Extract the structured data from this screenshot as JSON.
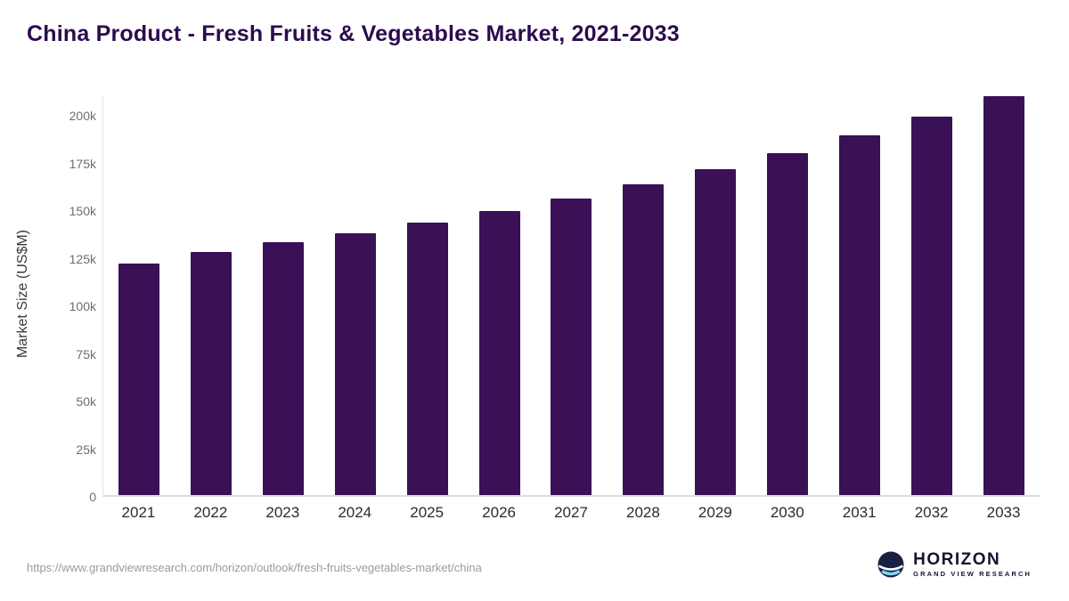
{
  "title": "China Product - Fresh Fruits & Vegetables Market, 2021-2033",
  "chart_data": {
    "type": "bar",
    "title": "China Product - Fresh Fruits & Vegetables Market, 2021-2033",
    "categories": [
      "2021",
      "2022",
      "2023",
      "2024",
      "2025",
      "2026",
      "2027",
      "2028",
      "2029",
      "2030",
      "2031",
      "2032",
      "2033"
    ],
    "values": [
      121500,
      127500,
      132500,
      137500,
      143000,
      149000,
      155500,
      163000,
      171000,
      179500,
      189000,
      198500,
      209500
    ],
    "xlabel": "",
    "ylabel": "Market Size (US$M)",
    "yticks": [
      {
        "value": 0,
        "label": "0"
      },
      {
        "value": 25000,
        "label": "25k"
      },
      {
        "value": 50000,
        "label": "50k"
      },
      {
        "value": 75000,
        "label": "75k"
      },
      {
        "value": 100000,
        "label": "100k"
      },
      {
        "value": 125000,
        "label": "125k"
      },
      {
        "value": 150000,
        "label": "150k"
      },
      {
        "value": 175000,
        "label": "175k"
      },
      {
        "value": 200000,
        "label": "200k"
      }
    ],
    "ylim": [
      0,
      210000
    ],
    "grid": false,
    "legend": "none",
    "bar_color": "#3a1056"
  },
  "footer": {
    "source_url": "https://www.grandviewresearch.com/horizon/outlook/fresh-fruits-vegetables-market/china",
    "brand_name": "HORIZON",
    "brand_sub": "GRAND VIEW RESEARCH"
  },
  "colors": {
    "title": "#2c0b4e",
    "bar": "#3a1056",
    "axis_text": "#6e6e6e",
    "brand_navy": "#172144",
    "brand_lightblue": "#7fd4f2"
  }
}
